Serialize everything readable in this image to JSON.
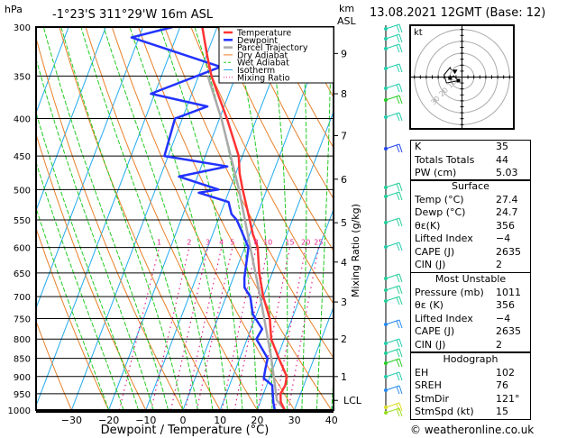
{
  "header": {
    "hpa_label": "hPa",
    "location": "-1°23'S  311°29'W  16m  ASL",
    "km_label": "km",
    "asl_label": "ASL",
    "datetime": "13.08.2021  12GMT  (Base: 12)"
  },
  "footer": {
    "copyright": "© weatheronline.co.uk"
  },
  "chart_data": [
    {
      "type": "line",
      "subtype": "skew-t log-p",
      "xlabel": "Dewpoint / Temperature (°C)",
      "ylabel": "hPa",
      "xlim": [
        -38,
        40
      ],
      "ylim": [
        1000,
        300
      ],
      "x_ticks": [
        -30,
        -20,
        -10,
        0,
        10,
        20,
        30,
        40
      ],
      "pressure_ticks": [
        300,
        350,
        400,
        450,
        500,
        550,
        600,
        650,
        700,
        750,
        800,
        850,
        900,
        950,
        1000
      ],
      "km_axis": {
        "label": "km ASL",
        "ticks": [
          {
            "label": "9",
            "p": 326
          },
          {
            "label": "8",
            "p": 370
          },
          {
            "label": "7",
            "p": 422
          },
          {
            "label": "6",
            "p": 484
          },
          {
            "label": "5",
            "p": 555
          },
          {
            "label": "4",
            "p": 628
          },
          {
            "label": "3",
            "p": 712
          },
          {
            "label": "2",
            "p": 800
          },
          {
            "label": "1",
            "p": 900
          },
          {
            "label": "LCL",
            "p": 970
          }
        ]
      },
      "mixing_ratio_axis_label": "Mixing Ratio (g/kg)",
      "mixing_ratio_labels": [
        "1",
        "2",
        "3",
        "4",
        "5",
        "8",
        "10",
        "15",
        "20",
        "25"
      ],
      "mixing_ratio_values": [
        1,
        2,
        3,
        4,
        5,
        8,
        10,
        15,
        20,
        25
      ],
      "legend": {
        "position": "top-right",
        "entries": [
          {
            "name": "Temperature",
            "color": "#ff3333",
            "style": "solid"
          },
          {
            "name": "Dewpoint",
            "color": "#2233ff",
            "style": "solid"
          },
          {
            "name": "Parcel Trajectory",
            "color": "#aaaaaa",
            "style": "solid"
          },
          {
            "name": "Dry Adiabat",
            "color": "#e8802a",
            "style": "solid"
          },
          {
            "name": "Wet Adiabat",
            "color": "#22cc22",
            "style": "dashed"
          },
          {
            "name": "Isotherm",
            "color": "#22aaee",
            "style": "solid"
          },
          {
            "name": "Mixing Ratio",
            "color": "#e0208a",
            "style": "dotted"
          }
        ]
      },
      "series": [
        {
          "name": "Temperature",
          "color": "#ff3333",
          "points": [
            {
              "p": 1000,
              "t": 27.4
            },
            {
              "p": 975,
              "t": 25.5
            },
            {
              "p": 950,
              "t": 24.6
            },
            {
              "p": 925,
              "t": 25.0
            },
            {
              "p": 900,
              "t": 24.5
            },
            {
              "p": 850,
              "t": 20.5
            },
            {
              "p": 800,
              "t": 16.5
            },
            {
              "p": 750,
              "t": 14.0
            },
            {
              "p": 700,
              "t": 10.0
            },
            {
              "p": 650,
              "t": 6.5
            },
            {
              "p": 600,
              "t": 3.5
            },
            {
              "p": 575,
              "t": 0.8
            },
            {
              "p": 550,
              "t": -1.5
            },
            {
              "p": 500,
              "t": -6.5
            },
            {
              "p": 475,
              "t": -9.0
            },
            {
              "p": 450,
              "t": -11.0
            },
            {
              "p": 400,
              "t": -18.0
            },
            {
              "p": 370,
              "t": -23.0
            },
            {
              "p": 350,
              "t": -26.5
            },
            {
              "p": 330,
              "t": -29.5
            },
            {
              "p": 300,
              "t": -34.0
            }
          ]
        },
        {
          "name": "Dewpoint",
          "color": "#2233ff",
          "points": [
            {
              "p": 1000,
              "t": 24.7
            },
            {
              "p": 975,
              "t": 23.5
            },
            {
              "p": 950,
              "t": 22.5
            },
            {
              "p": 925,
              "t": 21.5
            },
            {
              "p": 905,
              "t": 18.5
            },
            {
              "p": 880,
              "t": 18.0
            },
            {
              "p": 850,
              "t": 17.5
            },
            {
              "p": 800,
              "t": 12.5
            },
            {
              "p": 775,
              "t": 13.0
            },
            {
              "p": 740,
              "t": 9.0
            },
            {
              "p": 700,
              "t": 6.5
            },
            {
              "p": 680,
              "t": 4.0
            },
            {
              "p": 660,
              "t": 3.0
            },
            {
              "p": 600,
              "t": 1.0
            },
            {
              "p": 570,
              "t": -2.5
            },
            {
              "p": 550,
              "t": -5.0
            },
            {
              "p": 540,
              "t": -7.0
            },
            {
              "p": 520,
              "t": -9.0
            },
            {
              "p": 505,
              "t": -18.0
            },
            {
              "p": 500,
              "t": -13.0
            },
            {
              "p": 480,
              "t": -25.0
            },
            {
              "p": 465,
              "t": -13.0
            },
            {
              "p": 450,
              "t": -31.0
            },
            {
              "p": 400,
              "t": -32.0
            },
            {
              "p": 385,
              "t": -24.5
            },
            {
              "p": 370,
              "t": -41.0
            },
            {
              "p": 340,
              "t": -25.0
            },
            {
              "p": 310,
              "t": -52.0
            },
            {
              "p": 300,
              "t": -42.0
            }
          ]
        },
        {
          "name": "Parcel Trajectory",
          "color": "#aaaaaa",
          "points": [
            {
              "p": 1000,
              "t": 27.4
            },
            {
              "p": 970,
              "t": 24.3
            },
            {
              "p": 900,
              "t": 21.0
            },
            {
              "p": 850,
              "t": 18.5
            },
            {
              "p": 800,
              "t": 15.6
            },
            {
              "p": 700,
              "t": 9.2
            },
            {
              "p": 600,
              "t": 1.5
            },
            {
              "p": 500,
              "t": -7.5
            },
            {
              "p": 400,
              "t": -19.5
            },
            {
              "p": 350,
              "t": -27.5
            }
          ]
        }
      ]
    },
    {
      "type": "scatter",
      "subtype": "hodograph",
      "title": "kt",
      "rings_kt": [
        10,
        20,
        30,
        40
      ],
      "ring_labels": [
        "10",
        "20",
        "30"
      ],
      "points_u_v_kt": [
        [
          -10,
          -1
        ],
        [
          -7,
          1
        ],
        [
          -3,
          -3
        ],
        [
          -13,
          -5
        ],
        [
          -15,
          2
        ],
        [
          -10,
          8
        ],
        [
          -9,
          6
        ]
      ],
      "storm_motion_marker": [
        -6,
        4
      ]
    },
    {
      "type": "table",
      "subtype": "wind-barbs",
      "description": "Wind barbs by level (colored by speed)",
      "levels_count": 22
    }
  ],
  "indices": {
    "top": [
      {
        "label": "K",
        "value": "35"
      },
      {
        "label": "Totals Totals",
        "value": "44"
      },
      {
        "label": "PW (cm)",
        "value": "5.03"
      }
    ],
    "surface": {
      "title": "Surface",
      "rows": [
        {
          "label": "Temp (°C)",
          "value": "27.4"
        },
        {
          "label": "Dewp (°C)",
          "value": "24.7"
        },
        {
          "label": "θε(K)",
          "value": "356"
        },
        {
          "label": "Lifted Index",
          "value": "-4"
        },
        {
          "label": "CAPE (J)",
          "value": "2635"
        },
        {
          "label": "CIN (J)",
          "value": "2"
        }
      ]
    },
    "most_unstable": {
      "title": "Most Unstable",
      "rows": [
        {
          "label": "Pressure (mb)",
          "value": "1011"
        },
        {
          "label": "θε (K)",
          "value": "356"
        },
        {
          "label": "Lifted Index",
          "value": "-4"
        },
        {
          "label": "CAPE (J)",
          "value": "2635"
        },
        {
          "label": "CIN (J)",
          "value": "2"
        }
      ]
    },
    "hodograph": {
      "title": "Hodograph",
      "rows": [
        {
          "label": "EH",
          "value": "102"
        },
        {
          "label": "SREH",
          "value": "76"
        },
        {
          "label": "StmDir",
          "value": "121°"
        },
        {
          "label": "StmSpd (kt)",
          "value": "15"
        }
      ]
    }
  }
}
